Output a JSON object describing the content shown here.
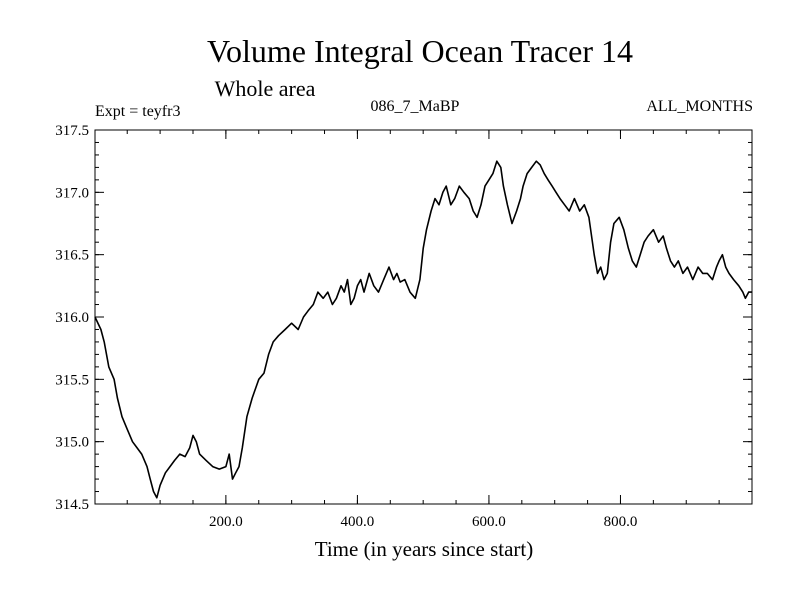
{
  "chart_data": {
    "type": "line",
    "title": "Volume Integral Ocean Tracer 14",
    "subtitle": "Whole area",
    "annotations": {
      "left": "Expt = teyfr3",
      "center": "086_7_MaBP",
      "right": "ALL_MONTHS"
    },
    "xlabel": "Time (in years since start)",
    "ylabel": "",
    "xlim": [
      1,
      1000
    ],
    "ylim": [
      314.5,
      317.5
    ],
    "x_ticks": [
      200,
      400,
      600,
      800
    ],
    "x_tick_labels": [
      "200.0",
      "400.0",
      "600.0",
      "800.0"
    ],
    "y_ticks": [
      314.5,
      315.0,
      315.5,
      316.0,
      316.5,
      317.0,
      317.5
    ],
    "y_tick_labels": [
      "314.5",
      "315.0",
      "315.5",
      "316.0",
      "316.5",
      "317.0",
      "317.5"
    ],
    "grid": false,
    "series": [
      {
        "color": "#000000",
        "x": [
          1,
          10,
          15,
          22,
          30,
          35,
          42,
          50,
          58,
          65,
          72,
          80,
          85,
          90,
          95,
          100,
          108,
          115,
          122,
          130,
          138,
          145,
          150,
          155,
          160,
          170,
          180,
          190,
          200,
          205,
          210,
          215,
          220,
          225,
          232,
          240,
          250,
          258,
          265,
          272,
          280,
          290,
          300,
          310,
          318,
          325,
          333,
          340,
          348,
          355,
          362,
          368,
          375,
          380,
          385,
          390,
          395,
          400,
          405,
          410,
          418,
          425,
          432,
          440,
          448,
          455,
          460,
          465,
          472,
          480,
          488,
          495,
          500,
          505,
          512,
          518,
          524,
          530,
          535,
          542,
          548,
          555,
          562,
          570,
          576,
          582,
          588,
          594,
          600,
          606,
          612,
          618,
          622,
          628,
          635,
          642,
          648,
          652,
          658,
          665,
          672,
          678,
          684,
          690,
          696,
          702,
          708,
          715,
          722,
          730,
          738,
          745,
          752,
          760,
          765,
          770,
          775,
          780,
          785,
          790,
          798,
          805,
          812,
          818,
          824,
          830,
          836,
          842,
          850,
          858,
          865,
          870,
          876,
          882,
          888,
          895,
          902,
          910,
          918,
          925,
          932,
          940,
          946,
          950,
          955,
          960,
          965,
          972,
          980,
          986,
          990,
          995,
          1000
        ],
        "values": [
          316.0,
          315.9,
          315.8,
          315.6,
          315.5,
          315.35,
          315.2,
          315.1,
          315.0,
          314.95,
          314.9,
          314.8,
          314.7,
          314.6,
          314.55,
          314.65,
          314.75,
          314.8,
          314.85,
          314.9,
          314.88,
          314.95,
          315.05,
          315.0,
          314.9,
          314.85,
          314.8,
          314.78,
          314.8,
          314.9,
          314.7,
          314.75,
          314.8,
          314.95,
          315.2,
          315.35,
          315.5,
          315.55,
          315.7,
          315.8,
          315.85,
          315.9,
          315.95,
          315.9,
          316.0,
          316.05,
          316.1,
          316.2,
          316.15,
          316.2,
          316.1,
          316.15,
          316.25,
          316.2,
          316.3,
          316.1,
          316.15,
          316.25,
          316.3,
          316.2,
          316.35,
          316.25,
          316.2,
          316.3,
          316.4,
          316.3,
          316.35,
          316.28,
          316.3,
          316.2,
          316.15,
          316.3,
          316.55,
          316.7,
          316.85,
          316.95,
          316.9,
          317.0,
          317.05,
          316.9,
          316.95,
          317.05,
          317.0,
          316.95,
          316.85,
          316.8,
          316.9,
          317.05,
          317.1,
          317.15,
          317.25,
          317.2,
          317.05,
          316.9,
          316.75,
          316.85,
          316.95,
          317.05,
          317.15,
          317.2,
          317.25,
          317.22,
          317.15,
          317.1,
          317.05,
          317.0,
          316.95,
          316.9,
          316.85,
          316.95,
          316.85,
          316.9,
          316.8,
          316.5,
          316.35,
          316.4,
          316.3,
          316.35,
          316.6,
          316.75,
          316.8,
          316.7,
          316.55,
          316.45,
          316.4,
          316.5,
          316.6,
          316.65,
          316.7,
          316.6,
          316.65,
          316.55,
          316.45,
          316.4,
          316.45,
          316.35,
          316.4,
          316.3,
          316.4,
          316.35,
          316.35,
          316.3,
          316.4,
          316.45,
          316.5,
          316.4,
          316.35,
          316.3,
          316.25,
          316.2,
          316.15,
          316.2,
          316.2
        ]
      }
    ]
  }
}
